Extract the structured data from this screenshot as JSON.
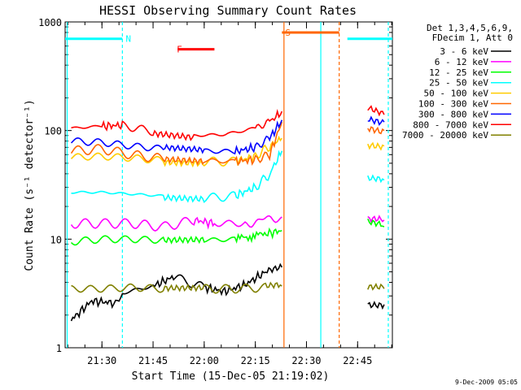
{
  "chart_data": {
    "type": "line",
    "title": "HESSI Observing Summary Count Rates",
    "xlabel": "Start Time (15-Dec-05 21:19:02)",
    "ylabel": "Count Rate (s⁻¹ detector⁻¹)",
    "y_scale": "log",
    "ylim": [
      1,
      1000
    ],
    "xlim": [
      21.32,
      22.92
    ],
    "x_ticks": [
      "21:30",
      "21:45",
      "22:00",
      "22:15",
      "22:30",
      "22:45"
    ],
    "y_ticks": [
      "1",
      "10",
      "100",
      "1000"
    ],
    "legend_header": [
      "Det 1,3,4,5,6,9,",
      "FDecim 1, Att 0"
    ],
    "footer": "9-Dec-2009 05:05",
    "series": [
      {
        "name": "3 - 6 keV",
        "color": "#000000",
        "x": [
          21.35,
          21.45,
          21.55,
          21.6,
          21.75,
          21.85,
          22.0,
          22.1,
          22.2,
          22.3,
          22.38,
          22.8,
          22.88
        ],
        "y": [
          1.8,
          2.7,
          2.6,
          3.2,
          3.7,
          4.5,
          3.6,
          3.3,
          3.8,
          5.0,
          5.5,
          2.5,
          2.5
        ]
      },
      {
        "name": "6 - 12 keV",
        "color": "#ff00ff",
        "x": [
          21.35,
          21.5,
          21.65,
          21.8,
          21.95,
          22.05,
          22.2,
          22.38,
          22.8,
          22.88
        ],
        "y": [
          14,
          14,
          14,
          13,
          15,
          14,
          14,
          16,
          15,
          15
        ]
      },
      {
        "name": "12 - 25 keV",
        "color": "#00ff00",
        "x": [
          21.35,
          21.5,
          21.65,
          21.8,
          22.0,
          22.15,
          22.28,
          22.38,
          22.8,
          22.88
        ],
        "y": [
          9.5,
          10,
          10,
          9.8,
          9.8,
          10,
          11,
          12,
          14,
          13
        ]
      },
      {
        "name": "25 - 50 keV",
        "color": "#00ffff",
        "x": [
          21.35,
          21.5,
          21.65,
          21.8,
          22.0,
          22.15,
          22.25,
          22.32,
          22.38,
          22.8,
          22.88
        ],
        "y": [
          27,
          27,
          26,
          25,
          24,
          25,
          30,
          40,
          65,
          36,
          35
        ]
      },
      {
        "name": "50 - 100 keV",
        "color": "#ffcc00",
        "x": [
          21.35,
          21.5,
          21.65,
          21.8,
          22.0,
          22.15,
          22.25,
          22.32,
          22.38,
          22.8,
          22.88
        ],
        "y": [
          57,
          58,
          56,
          53,
          52,
          52,
          58,
          72,
          85,
          75,
          72
        ]
      },
      {
        "name": "100 - 300 keV",
        "color": "#ff6600",
        "x": [
          21.35,
          21.5,
          21.65,
          21.8,
          22.0,
          22.15,
          22.25,
          22.32,
          22.38,
          22.8,
          22.88
        ],
        "y": [
          65,
          68,
          60,
          55,
          53,
          52,
          54,
          60,
          120,
          110,
          100
        ]
      },
      {
        "name": "300 - 800 keV",
        "color": "#0000ff",
        "x": [
          21.35,
          21.5,
          21.65,
          21.8,
          22.0,
          22.15,
          22.25,
          22.32,
          22.38,
          22.8,
          22.88
        ],
        "y": [
          80,
          78,
          72,
          68,
          65,
          64,
          70,
          85,
          125,
          130,
          120
        ]
      },
      {
        "name": "800 - 7000 keV",
        "color": "#ff0000",
        "x": [
          21.35,
          21.5,
          21.6,
          21.75,
          21.95,
          22.1,
          22.25,
          22.32,
          22.38,
          22.8,
          22.88
        ],
        "y": [
          105,
          110,
          112,
          98,
          90,
          92,
          105,
          120,
          150,
          160,
          140
        ]
      },
      {
        "name": "7000 - 20000 keV",
        "color": "#808000",
        "x": [
          21.35,
          21.5,
          21.65,
          21.8,
          22.0,
          22.15,
          22.3,
          22.38,
          22.8,
          22.88
        ],
        "y": [
          3.5,
          3.5,
          3.6,
          3.5,
          3.5,
          3.5,
          3.6,
          3.7,
          3.5,
          3.5
        ]
      }
    ],
    "annotations": [
      {
        "label": "N",
        "color": "#00ffff",
        "x": 21.6,
        "y": 700
      },
      {
        "label": "F",
        "color": "#ff0000",
        "x": 21.85,
        "y": 560
      },
      {
        "label": "S",
        "color": "#ff6600",
        "x": 22.38,
        "y": 800
      }
    ],
    "flag_segments": [
      {
        "color": "#00ffff",
        "x0": 21.32,
        "x1": 21.6,
        "y": 700
      },
      {
        "color": "#ff0000",
        "x0": 21.87,
        "x1": 22.05,
        "y": 560
      },
      {
        "color": "#ff6600",
        "x0": 22.38,
        "x1": 22.66,
        "y": 800
      },
      {
        "color": "#00ffff",
        "x0": 22.7,
        "x1": 22.92,
        "y": 700
      }
    ],
    "vertical_markers": [
      {
        "color": "#00ffff",
        "x": 21.33,
        "style": "solid"
      },
      {
        "color": "#00ffff",
        "x": 21.6,
        "style": "dashed"
      },
      {
        "color": "#ff6600",
        "x": 22.39,
        "style": "solid"
      },
      {
        "color": "#00ffff",
        "x": 22.57,
        "style": "solid"
      },
      {
        "color": "#ff6600",
        "x": 22.66,
        "style": "dashed"
      },
      {
        "color": "#00ffff",
        "x": 22.9,
        "style": "dashed"
      }
    ],
    "data_gap": [
      22.39,
      22.79
    ]
  }
}
